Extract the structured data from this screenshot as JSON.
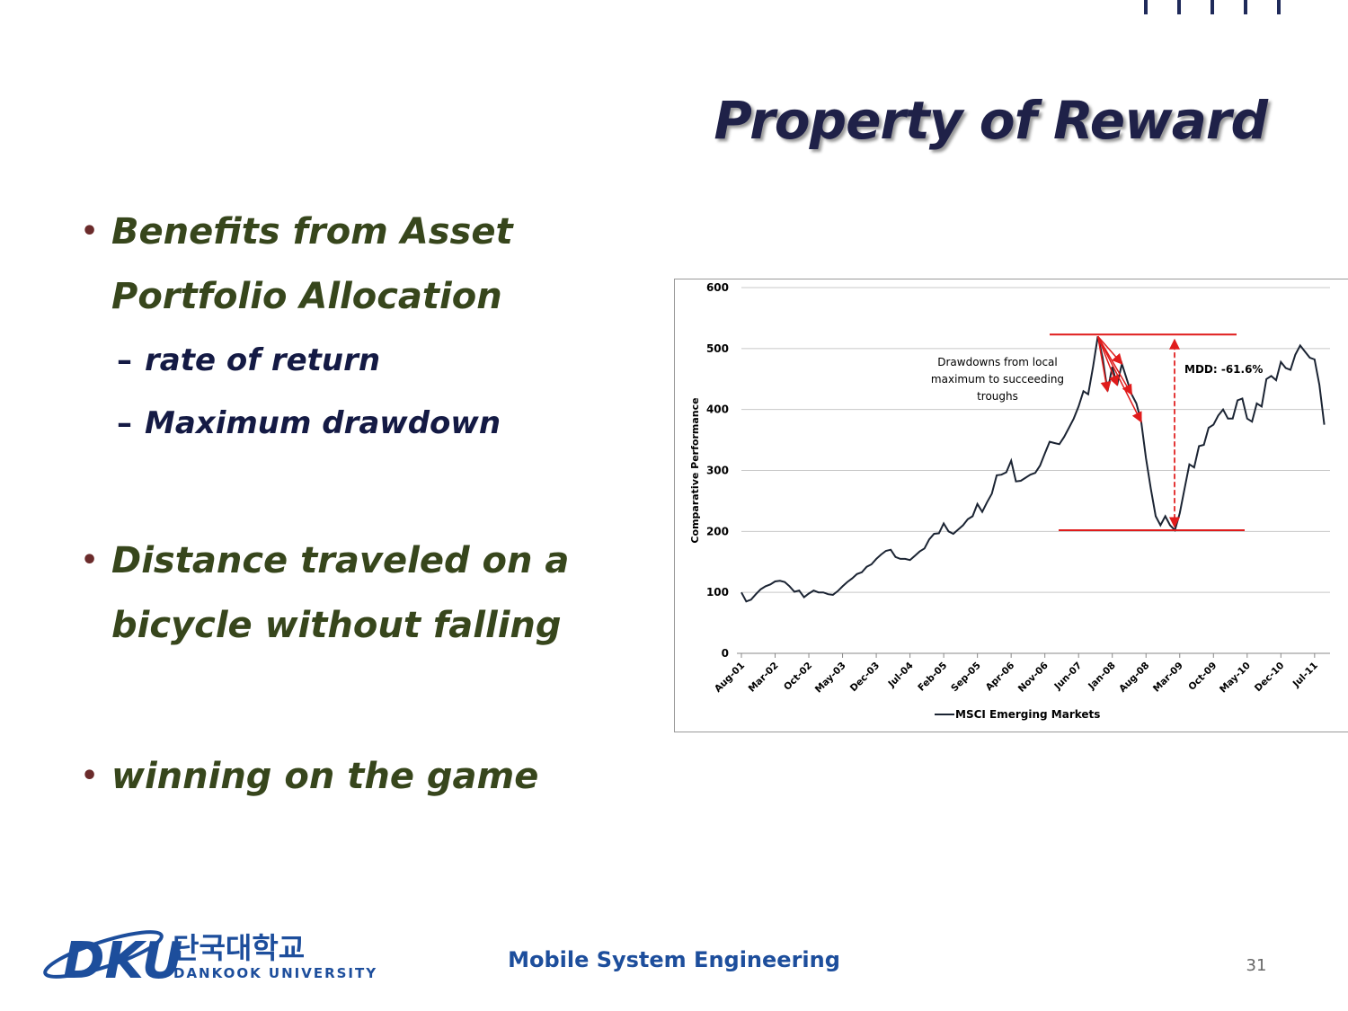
{
  "slide": {
    "title": "Property of Reward",
    "bullets": [
      {
        "text": "Benefits from Asset Portfolio Allocation",
        "subitems": [
          "rate of return",
          "Maximum drawdown"
        ]
      },
      {
        "text": "Distance traveled on a bicycle without falling",
        "subitems": []
      },
      {
        "text": "winning on the game",
        "subitems": []
      }
    ],
    "footer": {
      "logo_mark": "DKU",
      "logo_korean": "단국대학교",
      "logo_english": "DANKOOK UNIVERSITY",
      "center": "Mobile System Engineering",
      "page_number": "31"
    }
  },
  "chart_data": {
    "type": "line",
    "ylabel": "Comparative Performance",
    "categories": [
      "Aug-01",
      null,
      null,
      null,
      null,
      null,
      null,
      "Mar-02",
      null,
      null,
      null,
      null,
      null,
      null,
      "Oct-02",
      null,
      null,
      null,
      null,
      null,
      null,
      "May-03",
      null,
      null,
      null,
      null,
      null,
      null,
      "Dec-03",
      null,
      null,
      null,
      null,
      null,
      null,
      "Jul-04",
      null,
      null,
      null,
      null,
      null,
      null,
      "Feb-05",
      null,
      null,
      null,
      null,
      null,
      null,
      "Sep-05",
      null,
      null,
      null,
      null,
      null,
      null,
      "Apr-06",
      null,
      null,
      null,
      null,
      null,
      null,
      "Nov-06",
      null,
      null,
      null,
      null,
      null,
      null,
      "Jun-07",
      null,
      null,
      null,
      null,
      null,
      null,
      "Jan-08",
      null,
      null,
      null,
      null,
      null,
      null,
      "Aug-08",
      null,
      null,
      null,
      null,
      null,
      null,
      "Mar-09",
      null,
      null,
      null,
      null,
      null,
      null,
      "Oct-09",
      null,
      null,
      null,
      null,
      null,
      null,
      "May-10",
      null,
      null,
      null,
      null,
      null,
      null,
      "Dec-10",
      null,
      null,
      null,
      null,
      null,
      null,
      "Jul-11",
      null,
      null
    ],
    "series": [
      {
        "name": "MSCI Emerging Markets",
        "color": "#1b2433",
        "values": [
          100,
          85,
          88,
          97,
          105,
          110,
          113,
          118,
          119,
          117,
          110,
          101,
          103,
          92,
          98,
          103,
          100,
          100,
          97,
          96,
          102,
          110,
          117,
          123,
          130,
          133,
          142,
          146,
          155,
          162,
          168,
          170,
          158,
          155,
          155,
          153,
          160,
          167,
          172,
          187,
          196,
          197,
          213,
          200,
          196,
          203,
          210,
          220,
          225,
          245,
          232,
          248,
          262,
          292,
          293,
          297,
          316,
          282,
          283,
          288,
          293,
          296,
          308,
          328,
          347,
          345,
          343,
          355,
          370,
          385,
          405,
          430,
          425,
          470,
          520,
          485,
          430,
          470,
          440,
          475,
          450,
          425,
          410,
          380,
          320,
          270,
          225,
          210,
          225,
          210,
          202,
          230,
          270,
          310,
          305,
          340,
          342,
          370,
          375,
          390,
          400,
          385,
          385,
          415,
          418,
          385,
          380,
          410,
          405,
          450,
          455,
          448,
          478,
          468,
          465,
          490,
          505,
          495,
          485,
          482,
          440,
          375
        ]
      }
    ],
    "ylim": [
      0,
      600
    ],
    "yticks": [
      0,
      100,
      200,
      300,
      400,
      500,
      600
    ],
    "grid": true,
    "legend": "bottom",
    "annotations": [
      {
        "text": [
          "Drawdowns from local",
          "maximum to succeeding",
          "troughs"
        ]
      },
      {
        "text": [
          "MDD: -61.6%"
        ]
      }
    ],
    "annotation_color": "#e01b1b"
  }
}
